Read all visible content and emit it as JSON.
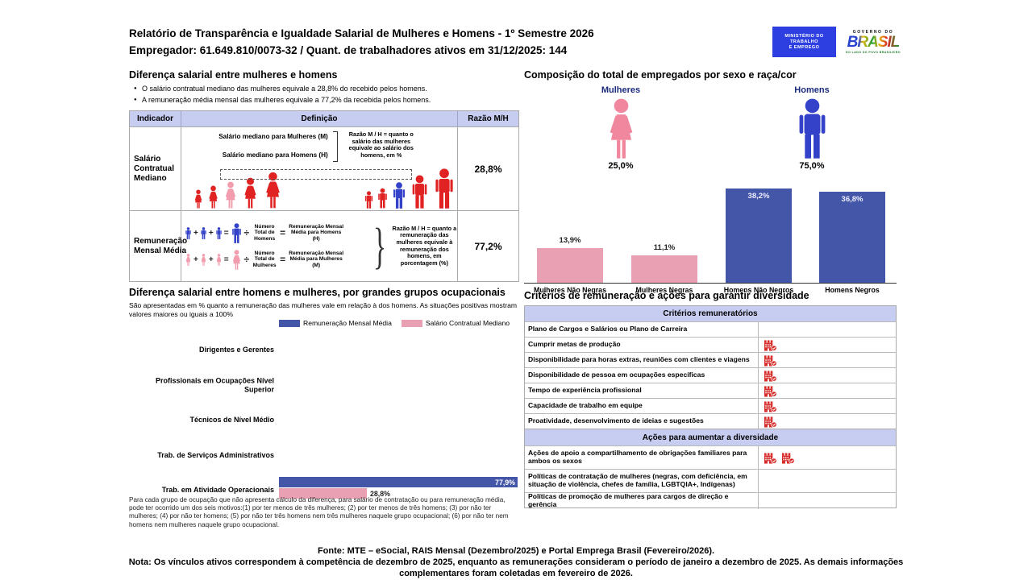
{
  "colors": {
    "navy": "#1b2a7b",
    "bar_blue": "#4456a8",
    "bar_pink": "#e8a0b2",
    "fig_red": "#e02222",
    "fig_blue": "#3342c8",
    "fig_pink": "#f29cae",
    "lavender": "#c7cdf1",
    "icon_red": "#d62b28",
    "gov_blue": "#2d3fe0",
    "border_gray": "#a9a9a9"
  },
  "header": {
    "title_line1": "Relatório de Transparência e Igualdade Salarial de Mulheres e Homens - 1º Semestre 2026",
    "title_line2": "Empregador: 61.649.810/0073-32 / Quant. de trabalhadores ativos em 31/12/2025: 144",
    "mte_logo": {
      "line1": "MINISTÉRIO DO",
      "line2": "TRABALHO",
      "line3": "E EMPREGO"
    },
    "gov_logo": {
      "top": "GOVERNO DO",
      "brand": "BRASIL",
      "tagline": "DO LADO DO POVO BRASILEIRO"
    }
  },
  "gap_section": {
    "title": "Diferença salarial entre mulheres e homens",
    "bullets": [
      "O salário contratual mediano das mulheres equivale a 28,8% do recebido pelos homens.",
      "A remuneração média mensal das mulheres equivale a 77,2% da recebida pelos homens."
    ],
    "table": {
      "headers": [
        "Indicador",
        "Definição",
        "Razão M/H"
      ],
      "operators": {
        "plus": "+",
        "equals": "=",
        "divide": "÷"
      },
      "rows": [
        {
          "indicator": "Salário Contratual Mediano",
          "def_line1": "Salário mediano para Mulheres (M)",
          "def_line2": "Salário mediano para Homens (H)",
          "note": "Razão M / H = quanto o salário das mulheres equivale ao salário dos homens, em %",
          "ratio": "28,8%"
        },
        {
          "indicator": "Remuneração Mensal Média",
          "men_divisor": "Número Total de Homens",
          "men_result": "Remuneração Mensal Média para Homens (H)",
          "women_divisor": "Número Total de Mulheres",
          "women_result": "Remuneração Mensal Média para Mulheres (M)",
          "note": "Razão M / H = quanto a remuneração das mulheres equivale à remuneração dos homens, em porcentagem (%)",
          "ratio": "77,2%"
        }
      ]
    }
  },
  "composition": {
    "title": "Composição do total de empregados por sexo e raça/cor"
  },
  "occupational": {
    "title": "Diferença salarial entre homens e mulheres, por grandes grupos ocupacionais",
    "subtitle": "São apresentadas em % quanto a remuneração das mulheres vale em relação à dos homens. As situações positivas mostram valores maiores ou iguais a 100%",
    "footnote": "Para cada grupo de ocupação que não apresenta cálculo da diferença, para salário de contratação ou para remuneração média, pode ter ocorrido um dos seis motivos:(1) por ter menos de três mulheres; (2) por ter menos de três homens; (3) por não ter mulheres; (4) por não ter homens; (5) por não ter três homens nem três mulheres naquele grupo ocupacional; (6) por não ter nem homens nem mulheres naquele grupo ocupacional."
  },
  "criterios": {
    "title": "Critérios de remuneração e ações para garantir diversidade",
    "groups": [
      {
        "header": "Critérios remuneratórios",
        "rows": [
          {
            "label": "Plano de Cargos e Salários ou Plano de Carreira",
            "icons": 0
          },
          {
            "label": "Cumprir metas de produção",
            "icons": 1
          },
          {
            "label": "Disponibilidade para horas extras, reuniões com clientes e viagens",
            "icons": 1
          },
          {
            "label": "Disponibilidade de pessoa em ocupações específicas",
            "icons": 1
          },
          {
            "label": "Tempo de experiência profissional",
            "icons": 1
          },
          {
            "label": "Capacidade de trabalho em equipe",
            "icons": 1
          },
          {
            "label": "Proatividade, desenvolvimento de ideias e sugestões",
            "icons": 1
          }
        ]
      },
      {
        "header": "Ações para aumentar a diversidade",
        "rows": [
          {
            "label": "Ações de apoio a compartilhamento de obrigações familiares para ambos os sexos",
            "icons": 2
          },
          {
            "label": "Políticas de contratação de mulheres (negras, com deficiência, em situação de violência, chefes de família, LGBTQIA+, Indígenas)",
            "icons": 0
          },
          {
            "label": "Políticas de promoção de mulheres para cargos de direção e gerência",
            "icons": 0
          }
        ]
      }
    ]
  },
  "footer": {
    "fonte": "Fonte: MTE – eSocial, RAIS Mensal (Dezembro/2025) e Portal Emprega Brasil (Fevereiro/2026).",
    "nota": "Nota: Os vínculos ativos correspondem à competência de dezembro de 2025, enquanto as remunerações consideram o período de janeiro a dezembro de 2025. As demais informações complementares foram coletadas em fevereiro de 2026."
  },
  "chart_data": [
    {
      "type": "bar",
      "title": "Composição do total de empregados por sexo e raça/cor",
      "sex_split": {
        "categories": [
          "Mulheres",
          "Homens"
        ],
        "values": [
          25.0,
          75.0
        ],
        "labels": [
          "25,0%",
          "75,0%"
        ]
      },
      "categories": [
        "Mulheres Não Negras",
        "Mulheres Negras",
        "Homens Não Negros",
        "Homens Negros"
      ],
      "values": [
        13.9,
        11.1,
        38.2,
        36.8
      ],
      "value_labels": [
        "13,9%",
        "11,1%",
        "38,2%",
        "36,8%"
      ],
      "bar_colors": [
        "#e8a0b2",
        "#e8a0b2",
        "#4456a8",
        "#4456a8"
      ],
      "ylim": [
        0,
        40
      ],
      "grid": false,
      "unit": "%"
    },
    {
      "type": "bar",
      "orientation": "horizontal",
      "title": "Diferença salarial entre homens e mulheres, por grandes grupos ocupacionais",
      "categories": [
        "Dirigentes e Gerentes",
        "Profissionais em Ocupações Nível Superior",
        "Técnicos de Nível Médio",
        "Trab. de Serviços Administrativos",
        "Trab. em Atividade Operacionais"
      ],
      "series": [
        {
          "name": "Remuneração Mensal Média",
          "color": "#4456a8",
          "values": [
            null,
            null,
            null,
            null,
            77.9
          ]
        },
        {
          "name": "Salário Contratual Mediano",
          "color": "#e8a0b2",
          "values": [
            null,
            null,
            null,
            null,
            28.8
          ]
        }
      ],
      "value_labels": [
        "77,9%",
        "28,8%"
      ],
      "xlim": [
        0,
        100
      ],
      "legend_position": "top",
      "unit": "%"
    }
  ]
}
